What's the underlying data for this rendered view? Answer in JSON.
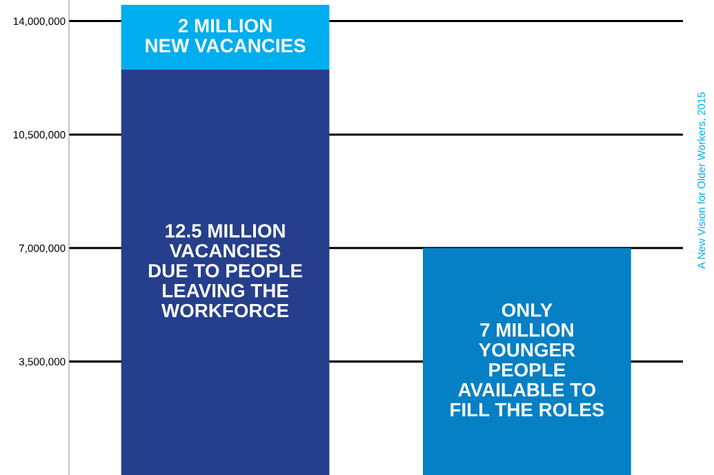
{
  "chart_data": {
    "type": "bar",
    "stacked": true,
    "categories": [
      null,
      null
    ],
    "series": [
      {
        "values": [
          12500000,
          7000000
        ],
        "colors": [
          "#253f8c",
          "#0680c4"
        ]
      },
      {
        "values": [
          2000000,
          null
        ],
        "color": "#00adee"
      }
    ],
    "ylim": [
      0,
      14650000
    ],
    "yticks": [
      {
        "value": 3500000,
        "label": "3,500,000"
      },
      {
        "value": 7000000,
        "label": "7,000,000"
      },
      {
        "value": 10500000,
        "label": "10,500,000"
      },
      {
        "value": 14000000,
        "label": "14,000,000"
      }
    ],
    "grid": "y",
    "tick_labels": "y",
    "annotations": [
      "A New Vision for Older Workers, 2015",
      "12.5 MILLION\nVACANCIES\nDUE TO PEOPLE\nLEAVING THE\nWORKFORCE",
      "ONLY\n7 MILLION\nYOUNGER\nPEOPLE\nAVAILABLE TO\nFILL THE ROLES",
      "2 MILLION\nNEW VACANCIES"
    ]
  }
}
